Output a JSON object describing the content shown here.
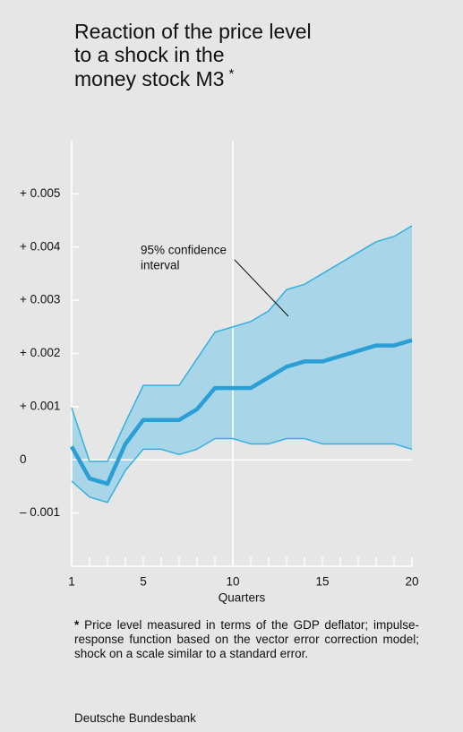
{
  "chart_data": {
    "type": "band-line",
    "title": [
      "Reaction of the price level",
      "to a shock in the",
      "money stock M3"
    ],
    "title_marker": "*",
    "x_label": "Quarters",
    "annotation": [
      "95% confidence",
      "interval"
    ],
    "footnote_marker": "*",
    "footnote": "Price level measured in terms of the GDP deflator; impulse-response function based on the vector error correction model; shock on a scale similar to a standard error.",
    "source": "Deutsche Bundesbank",
    "x": [
      1,
      2,
      3,
      4,
      5,
      6,
      7,
      8,
      9,
      10,
      11,
      12,
      13,
      14,
      15,
      16,
      17,
      18,
      19,
      20
    ],
    "estimate": {
      "color": "#2a9fd6",
      "values": [
        0.00025,
        -0.00035,
        -0.00045,
        0.0003,
        0.00075,
        0.00075,
        0.00075,
        0.00095,
        0.00135,
        0.00135,
        0.00135,
        0.00155,
        0.00175,
        0.00185,
        0.00185,
        0.00195,
        0.00205,
        0.00215,
        0.00215,
        0.00225
      ]
    },
    "confidence_band": {
      "color": "#a9d5e8",
      "line_color": "#35b0de",
      "upper": [
        0.00098,
        -3e-05,
        -3e-05,
        0.0007,
        0.0014,
        0.0014,
        0.0014,
        0.0019,
        0.0024,
        0.0025,
        0.0026,
        0.0028,
        0.0032,
        0.0033,
        0.0035,
        0.0037,
        0.0039,
        0.0041,
        0.0042,
        0.0044
      ],
      "lower": [
        -0.0004,
        -0.0007,
        -0.0008,
        -0.0002,
        0.0002,
        0.0002,
        0.0001,
        0.0002,
        0.0004,
        0.0004,
        0.0003,
        0.0003,
        0.0004,
        0.0004,
        0.0003,
        0.0003,
        0.0003,
        0.0003,
        0.0003,
        0.0002
      ]
    },
    "xlim": [
      1,
      20
    ],
    "xticks": [
      1,
      5,
      10,
      15,
      20
    ],
    "ylim": [
      -0.002,
      0.006
    ],
    "yticks": [
      {
        "value": -0.001,
        "label": "– 0.001"
      },
      0,
      {
        "value": 0.001,
        "label": "+ 0.001"
      },
      {
        "value": 0.002,
        "label": "+ 0.002"
      },
      {
        "value": 0.003,
        "label": "+ 0.003"
      },
      {
        "value": 0.004,
        "label": "+ 0.004"
      },
      {
        "value": 0.005,
        "label": "+ 0.005"
      }
    ]
  }
}
